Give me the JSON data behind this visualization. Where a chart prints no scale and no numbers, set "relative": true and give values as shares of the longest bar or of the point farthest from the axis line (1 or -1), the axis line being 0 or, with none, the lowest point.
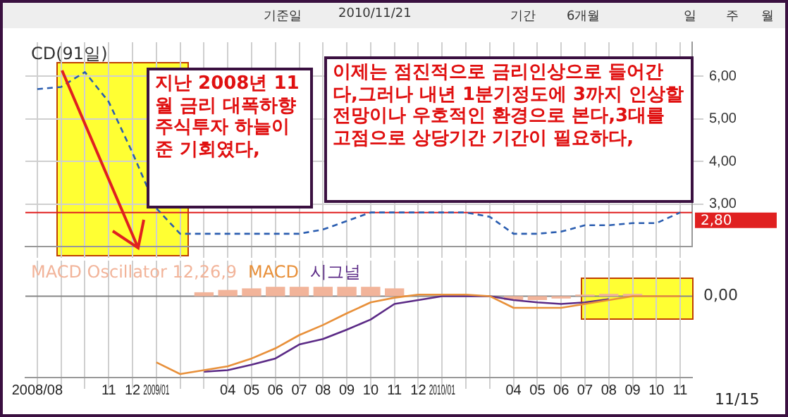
{
  "chart_data": [
    {
      "type": "line",
      "title": "CD(91일)",
      "categories": [
        "2008/08",
        null,
        null,
        "11",
        "12",
        "2009/01",
        null,
        null,
        "04",
        "05",
        "06",
        "07",
        "08",
        "09",
        "10",
        "11",
        "12",
        "2010/01",
        null,
        null,
        "04",
        "05",
        "06",
        "07",
        "08",
        "09",
        "10",
        "11"
      ],
      "series": [
        {
          "color": "#2a5db0",
          "values": [
            5.7,
            5.75,
            6.1,
            5.4,
            4.2,
            2.9,
            2.3,
            2.3,
            2.3,
            2.3,
            2.3,
            2.3,
            2.4,
            2.6,
            2.8,
            2.8,
            2.8,
            2.8,
            2.8,
            2.7,
            2.3,
            2.3,
            2.35,
            2.5,
            2.5,
            2.55,
            2.55,
            2.8
          ]
        }
      ],
      "line_style": "dashed",
      "marker": "none",
      "grid": true,
      "tick_labels": "y",
      "ylim": [
        2.0,
        6.8
      ],
      "yticks": [
        {
          "value": 3,
          "label": "3,00"
        },
        {
          "value": 4,
          "label": "4,00"
        },
        {
          "value": 5,
          "label": "5,00"
        },
        {
          "value": 6,
          "label": "6,00"
        }
      ],
      "ref_lines": [
        {
          "axis": "y",
          "value": 2.8,
          "label": "2,80",
          "color": "#e02020"
        }
      ],
      "annotations": [
        "지난 2008년 11월 금리 대폭하향 주식투자 하늘이준 기회였다,",
        "이제는 점진적으로 금리인상으로 들어간다,그러나 내년 1분기정도에 3까지 인상할 전망이나 우호적인 환경으로 본다,3대를 고점으로 상당기간 기간이 필요하다,",
        "기준일",
        "2010/11/21",
        "기간",
        "6개월",
        "일",
        "주",
        "월"
      ]
    },
    {
      "type": "line",
      "categories": [
        "2008/08",
        null,
        null,
        "11",
        "12",
        "2009/01",
        null,
        null,
        "04",
        "05",
        "06",
        "07",
        "08",
        "09",
        "10",
        "11",
        "12",
        "2010/01",
        null,
        null,
        "04",
        "05",
        "06",
        "07",
        "08",
        "09",
        "10",
        "11"
      ],
      "relative": true,
      "legend": "top left",
      "grid": true,
      "tick_labels": "x",
      "line_style": "solid",
      "marker": "none",
      "series": [
        {
          "name": "MACD Oscillator 12,26,9",
          "type": "bar",
          "color": "#f2b49a",
          "values": [
            null,
            null,
            null,
            null,
            null,
            null,
            null,
            0.05,
            0.08,
            0.1,
            0.12,
            0.12,
            0.12,
            0.12,
            0.12,
            0.1,
            null,
            null,
            null,
            null,
            -0.05,
            -0.05,
            -0.03,
            0.02,
            0.03,
            0.03,
            null,
            null
          ]
        },
        {
          "name": "MACD",
          "color": "#e8903a",
          "values": [
            null,
            null,
            null,
            null,
            null,
            -0.85,
            -1,
            -0.95,
            -0.9,
            -0.8,
            -0.67,
            -0.5,
            -0.37,
            -0.22,
            -0.08,
            -0.02,
            0.02,
            0.02,
            0.02,
            0,
            -0.15,
            -0.15,
            -0.15,
            -0.1,
            -0.05,
            0,
            0,
            0
          ]
        },
        {
          "name": "시그널",
          "color": "#5b2a86",
          "values": [
            null,
            null,
            null,
            null,
            null,
            null,
            null,
            -0.97,
            -0.95,
            -0.88,
            -0.8,
            -0.62,
            -0.55,
            -0.43,
            -0.3,
            -0.1,
            -0.05,
            0,
            0,
            0,
            -0.05,
            -0.08,
            -0.1,
            -0.08,
            -0.04,
            null,
            null,
            null
          ]
        }
      ],
      "ref_lines": [
        {
          "axis": "y",
          "value": 0,
          "label": "0,00",
          "color": "#888888"
        }
      ],
      "annotations": [
        "11/15"
      ]
    }
  ]
}
